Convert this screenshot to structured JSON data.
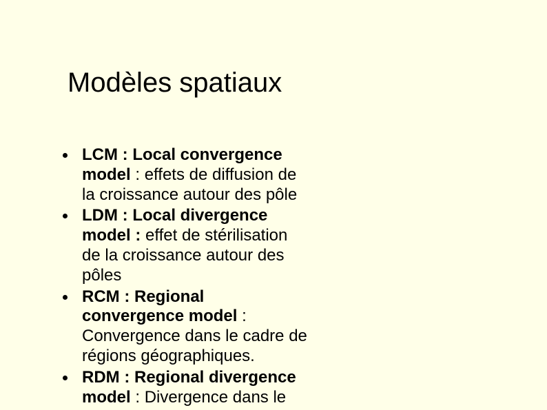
{
  "slide": {
    "background_color": "#ffffe8",
    "text_color": "#000000",
    "title_fontsize": 40,
    "body_fontsize": 24,
    "title": "Modèles spatiaux",
    "bullets": [
      {
        "bold": "LCM : Local convergence model",
        "rest": " : effets de diffusion de la croissance autour des pôle"
      },
      {
        "bold": "LDM : Local divergence model :",
        "rest": " effet de stérilisation de la croissance autour des pôles"
      },
      {
        "bold": "RCM : Regional convergence model",
        "rest": " : Convergence dans le cadre de régions géographiques."
      },
      {
        "bold": "RDM : Regional divergence model",
        "rest": " : Divergence dans le"
      }
    ]
  }
}
